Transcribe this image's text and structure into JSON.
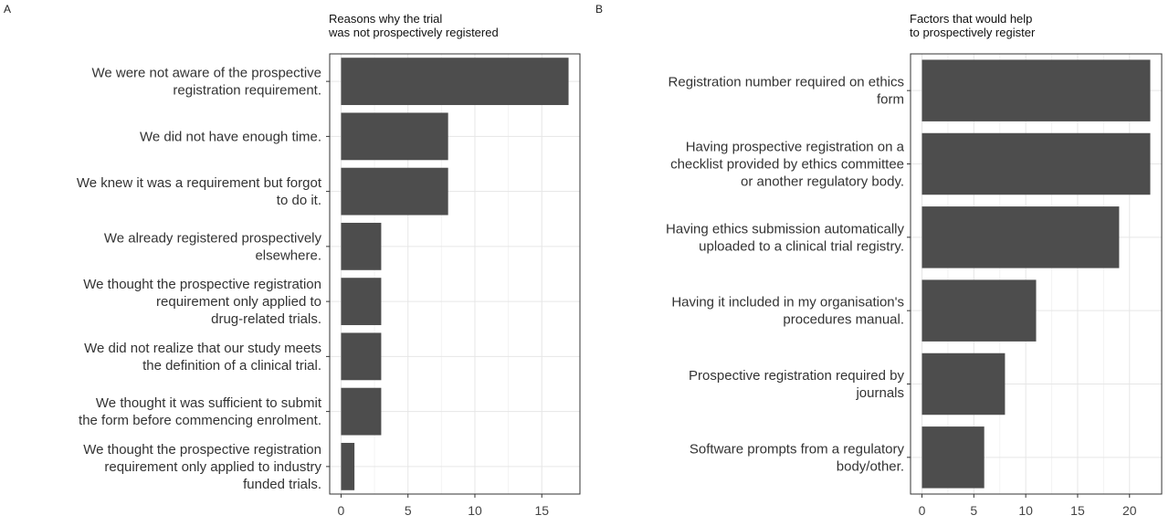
{
  "chart_data": [
    {
      "type": "bar",
      "orientation": "horizontal",
      "panel": "A",
      "title": "Reasons why the trial\nwas not prospectively registered",
      "categories": [
        "We were not aware of the prospective\nregistration requirement.",
        "We did not have enough time.",
        "We knew it was a requirement but forgot\nto do it.",
        "We already registered prospectively\nelsewhere.",
        "We thought the prospective registration\nrequirement only applied to\ndrug-related trials.",
        "We did not realize that our study meets\nthe definition of a clinical trial.",
        "We thought it was sufficient to submit\nthe form before commencing enrolment.",
        "We thought the prospective registration\nrequirement only applied to industry\nfunded trials."
      ],
      "values": [
        17,
        8,
        8,
        3,
        3,
        3,
        3,
        1
      ],
      "xlim": [
        -0.85,
        17.85
      ],
      "xticks": [
        0,
        5,
        10,
        15
      ],
      "bar_color": "#4d4d4d",
      "grid": true
    },
    {
      "type": "bar",
      "orientation": "horizontal",
      "panel": "B",
      "title": "Factors that would help\nto prospectively register",
      "categories": [
        "Registration number required on ethics\nform",
        "Having prospective registration on a\nchecklist provided by ethics committee\nor another regulatory body.",
        "Having ethics submission automatically\nuploaded to a clinical trial registry.",
        "Having it included in my organisation's\nprocedures manual.",
        "Prospective registration required by\njournals",
        "Software prompts from a regulatory\nbody/other."
      ],
      "values": [
        22,
        22,
        19,
        11,
        8,
        6
      ],
      "xlim": [
        -1.1,
        23.1
      ],
      "xticks": [
        0,
        5,
        10,
        15,
        20
      ],
      "bar_color": "#4d4d4d",
      "grid": true
    }
  ]
}
